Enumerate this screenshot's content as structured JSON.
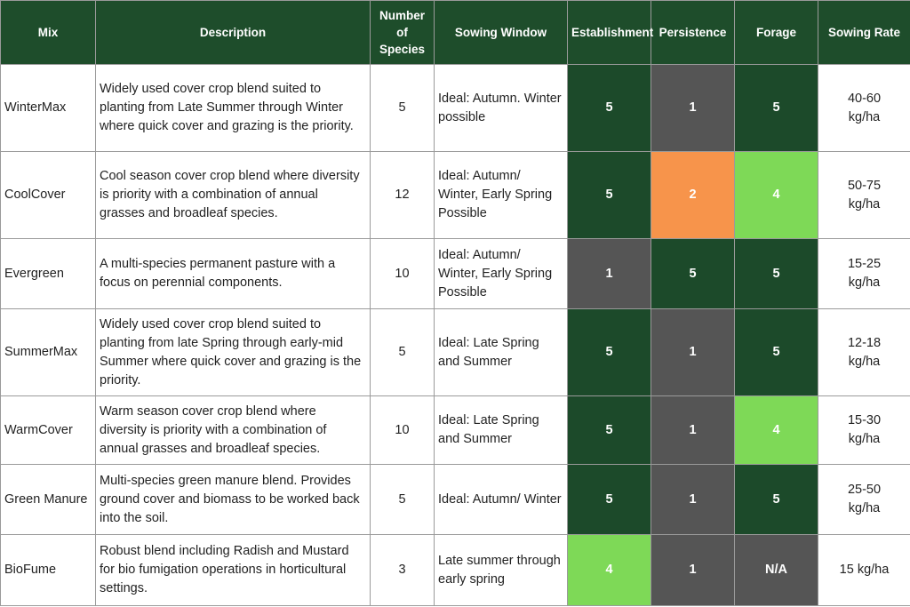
{
  "table": {
    "header": [
      "Mix",
      "Description",
      "Number of Species",
      "Sowing Window",
      "Establishment",
      "Persistence",
      "Forage",
      "Sowing Rate"
    ],
    "rows": [
      [
        "WinterMax",
        "Widely used cover crop blend suited to planting from Late Summer through Winter where quick cover and grazing is the priority.",
        5,
        "Ideal: Autumn. Winter possible",
        {
          "value": 5,
          "color": "#1c4a2a"
        },
        {
          "value": 1,
          "color": "#555555"
        },
        {
          "value": 5,
          "color": "#1c4a2a"
        },
        "40-60 kg/ha"
      ],
      [
        "CoolCover",
        "Cool season cover crop blend where diversity is priority with a combination of annual grasses and broadleaf species.",
        12,
        "Ideal: Autumn/ Winter, Early Spring Possible",
        {
          "value": 5,
          "color": "#1c4a2a"
        },
        {
          "value": 2,
          "color": "#f7944b"
        },
        {
          "value": 4,
          "color": "#7ed957"
        },
        "50-75 kg/ha"
      ],
      [
        "Evergreen",
        "A multi-species permanent pasture with a focus on perennial components.",
        10,
        "Ideal: Autumn/ Winter, Early Spring Possible",
        {
          "value": 1,
          "color": "#555555"
        },
        {
          "value": 5,
          "color": "#1c4a2a"
        },
        {
          "value": 5,
          "color": "#1c4a2a"
        },
        "15-25 kg/ha"
      ],
      [
        "SummerMax",
        "Widely used cover crop blend suited to planting from late Spring through early-mid Summer where quick cover and grazing is the priority.",
        5,
        "Ideal: Late Spring and Summer",
        {
          "value": 5,
          "color": "#1c4a2a"
        },
        {
          "value": 1,
          "color": "#555555"
        },
        {
          "value": 5,
          "color": "#1c4a2a"
        },
        "12-18 kg/ha"
      ],
      [
        "WarmCover",
        "Warm season cover crop blend where diversity is priority with a combination of annual grasses and broadleaf species.",
        10,
        "Ideal: Late Spring and Summer",
        {
          "value": 5,
          "color": "#1c4a2a"
        },
        {
          "value": 1,
          "color": "#555555"
        },
        {
          "value": 4,
          "color": "#7ed957"
        },
        "15-30 kg/ha"
      ],
      [
        "Green Manure",
        "Multi-species green manure blend. Provides ground cover and biomass to be worked back into the soil.",
        5,
        "Ideal: Autumn/ Winter",
        {
          "value": 5,
          "color": "#1c4a2a"
        },
        {
          "value": 1,
          "color": "#555555"
        },
        {
          "value": 5,
          "color": "#1c4a2a"
        },
        "25-50 kg/ha"
      ],
      [
        "BioFume",
        "Robust blend including Radish and Mustard for bio fumigation operations in horticultural settings.",
        3,
        "Late summer through early spring",
        {
          "value": 4,
          "color": "#7ed957"
        },
        {
          "value": 1,
          "color": "#555555"
        },
        {
          "value": "N/A",
          "color": "#555555"
        },
        "15 kg/ha"
      ]
    ]
  }
}
